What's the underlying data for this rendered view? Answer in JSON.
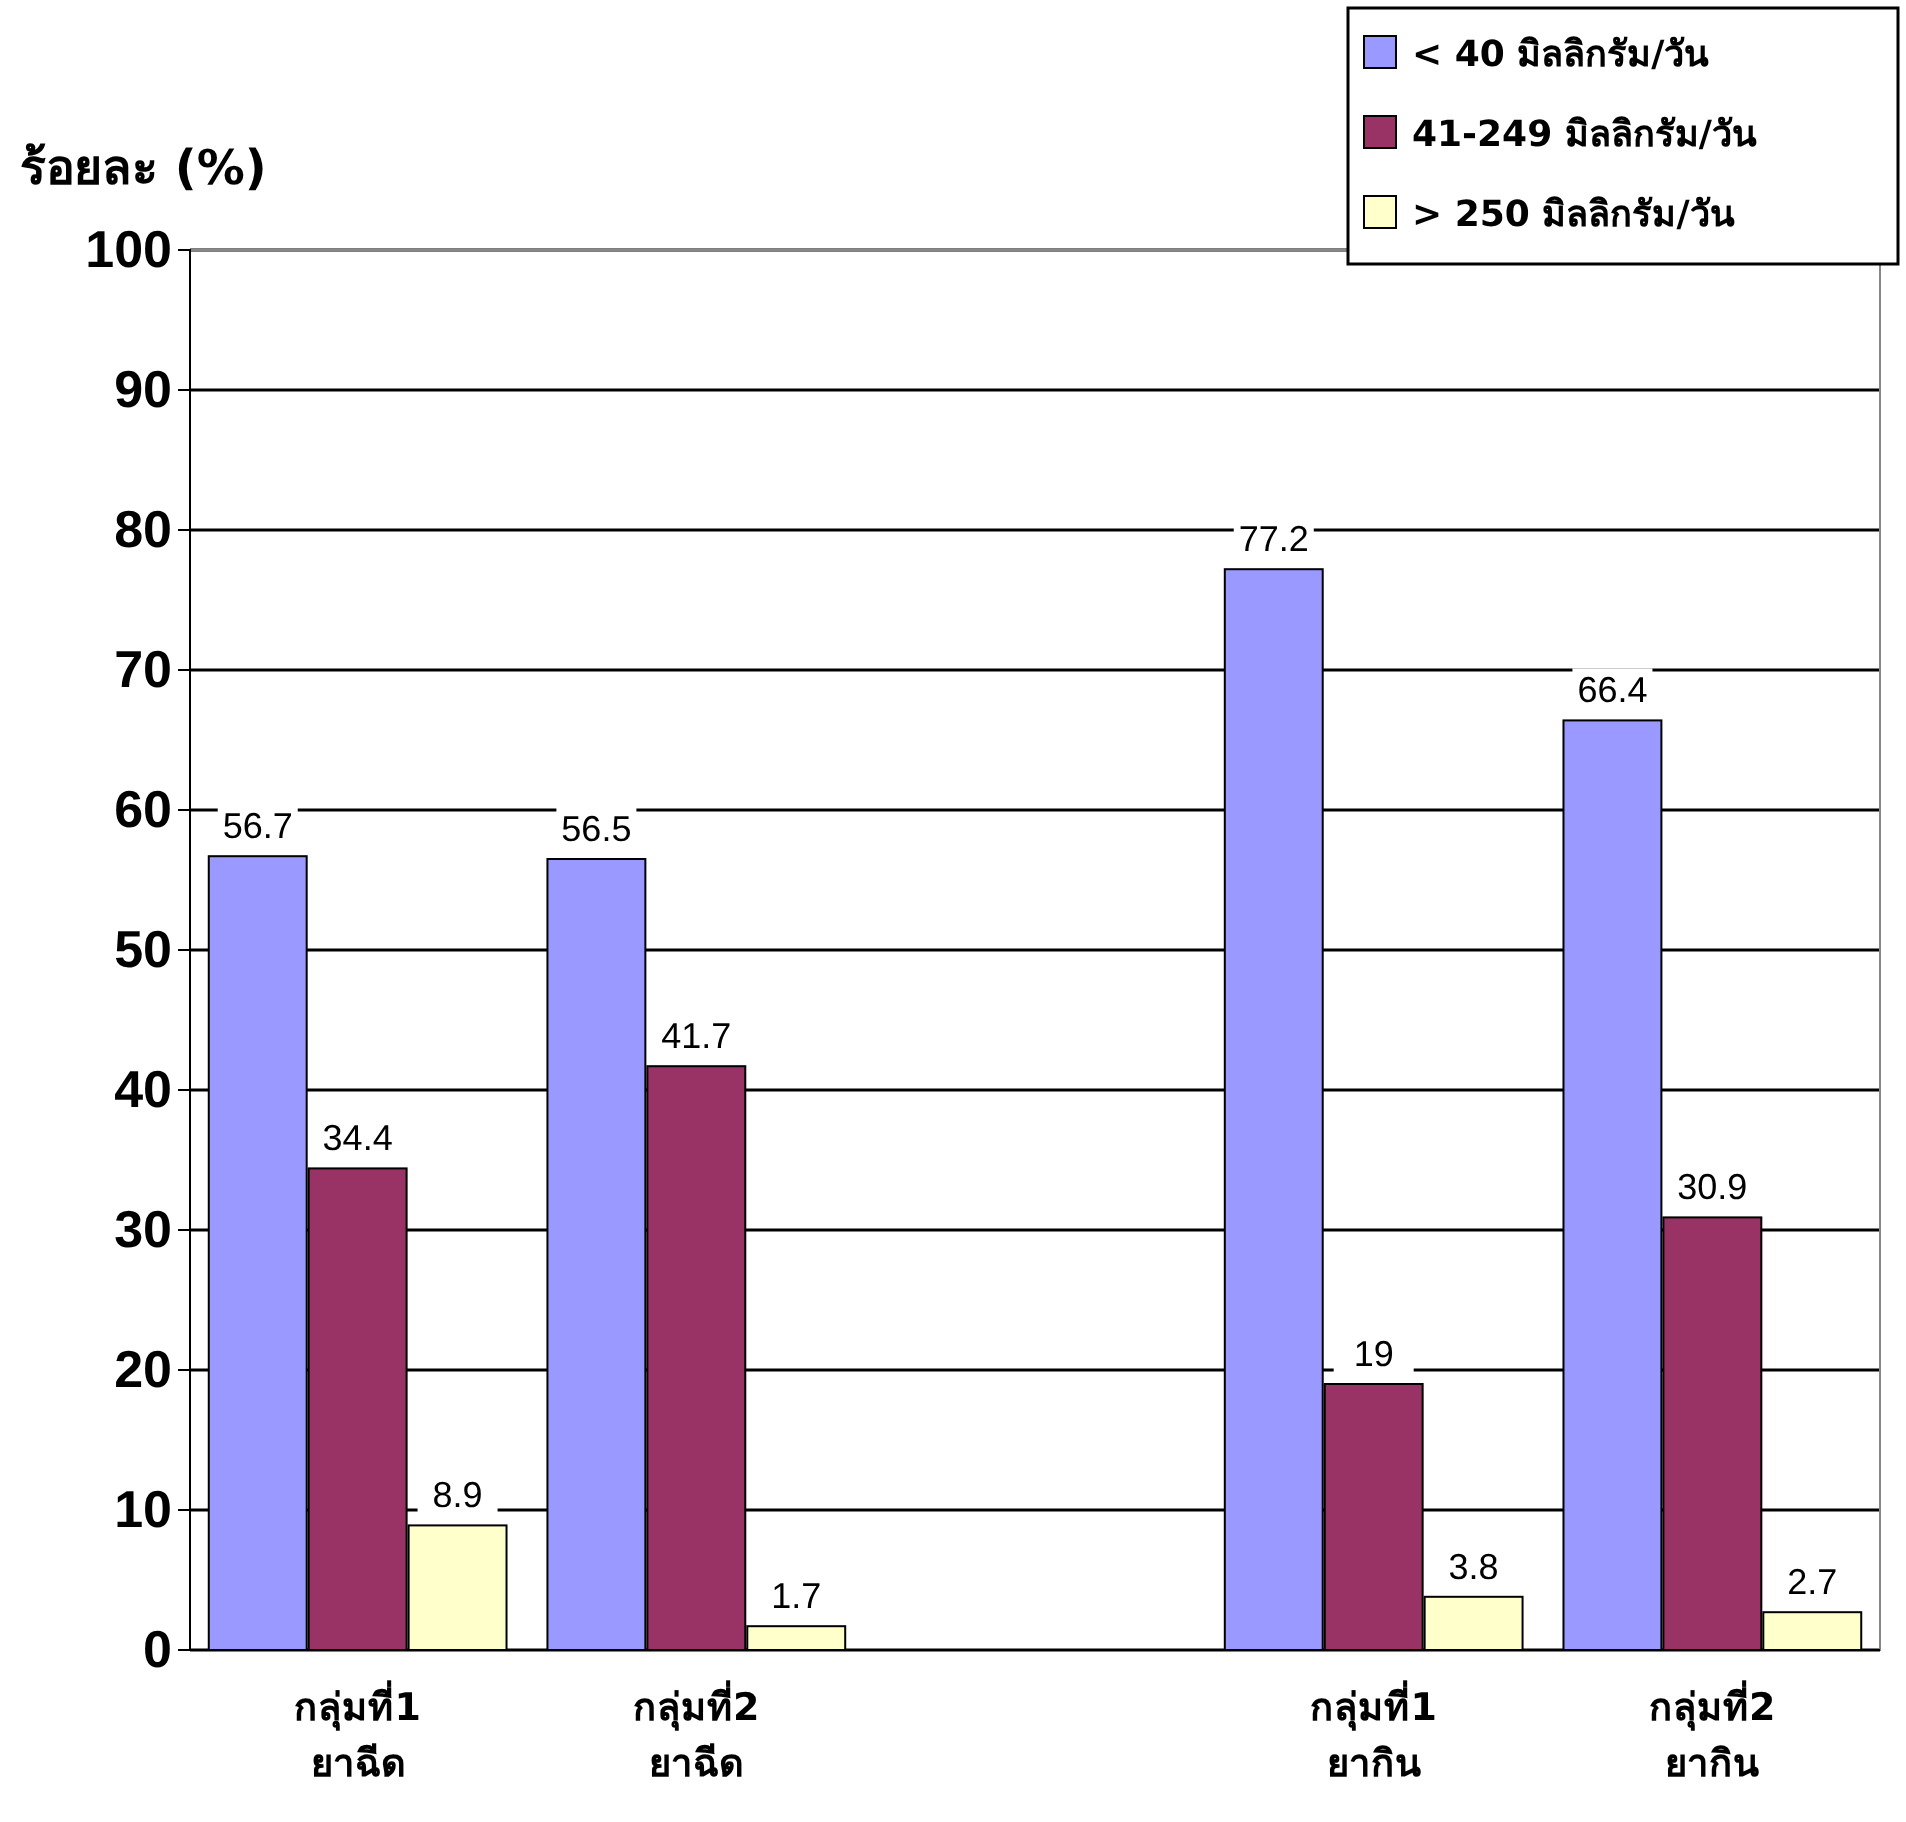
{
  "chart_data": {
    "type": "bar",
    "ylabel": "ร้อยละ (%)",
    "categories": [
      "กลุ่มที่1\nยาฉีด",
      "กลุ่มที่2\nยาฉีด",
      null,
      "กลุ่มที่1\nยากิน",
      "กลุ่มที่2\nยากิน"
    ],
    "series": [
      {
        "name": "< 40 มิลลิกรัม/วัน",
        "color": "#9999ff",
        "values": [
          56.7,
          56.5,
          null,
          77.2,
          66.4
        ]
      },
      {
        "name": "41-249 มิลลิกรัม/วัน",
        "color": "#993366",
        "values": [
          34.4,
          41.7,
          null,
          19,
          30.9
        ]
      },
      {
        "name": "> 250 มิลลิกรัม/วัน",
        "color": "#ffffcc",
        "values": [
          8.9,
          1.7,
          null,
          3.8,
          2.7
        ]
      }
    ],
    "ylim": [
      0,
      100
    ],
    "yticks": [
      0,
      10,
      20,
      30,
      40,
      50,
      60,
      70,
      80,
      90,
      100
    ],
    "grid": "y",
    "legend": "top right",
    "data_labels": true
  }
}
